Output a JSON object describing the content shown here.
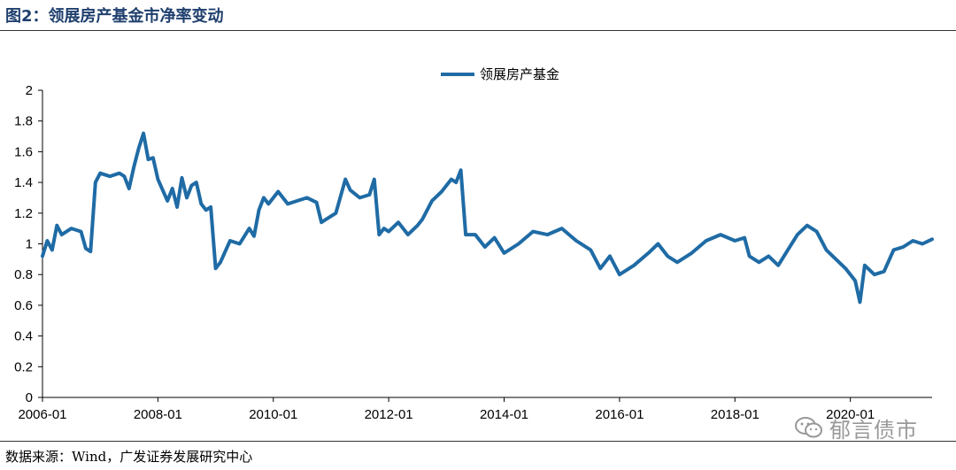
{
  "header": {
    "title": "图2：领展房产基金市净率变动"
  },
  "footer": {
    "source": "数据来源：Wind，广发证券发展研究中心"
  },
  "watermark": {
    "text": "郁言债市",
    "icon": "wechat-icon"
  },
  "colors": {
    "series": "#1f6ba5",
    "title": "#1f3f6e",
    "axis": "#000000"
  },
  "chart_data": {
    "type": "line",
    "title": "",
    "xlabel": "",
    "ylabel": "",
    "ylim": [
      0,
      2
    ],
    "yticks": [
      0,
      0.2,
      0.4,
      0.6,
      0.8,
      1,
      1.2,
      1.4,
      1.6,
      1.8,
      2
    ],
    "ytick_labels": [
      "0",
      "0.2",
      "0.4",
      "0.6",
      "0.8",
      "1",
      "1.2",
      "1.4",
      "1.6",
      "1.8",
      "2"
    ],
    "xlim": [
      "2006-01",
      "2021-06"
    ],
    "xticks": [
      "2006-01",
      "2008-01",
      "2010-01",
      "2012-01",
      "2014-01",
      "2016-01",
      "2018-01",
      "2020-01"
    ],
    "grid": false,
    "legend": "top-center",
    "series": [
      {
        "name": "领展房产基金",
        "color": "#1f6ba5",
        "points": [
          [
            "2006-01",
            0.92
          ],
          [
            "2006-02",
            1.02
          ],
          [
            "2006-03",
            0.96
          ],
          [
            "2006-04",
            1.12
          ],
          [
            "2006-05",
            1.06
          ],
          [
            "2006-07",
            1.1
          ],
          [
            "2006-09",
            1.08
          ],
          [
            "2006-10",
            0.97
          ],
          [
            "2006-11",
            0.95
          ],
          [
            "2006-12",
            1.4
          ],
          [
            "2007-01",
            1.46
          ],
          [
            "2007-03",
            1.44
          ],
          [
            "2007-05",
            1.46
          ],
          [
            "2007-06",
            1.44
          ],
          [
            "2007-07",
            1.36
          ],
          [
            "2007-08",
            1.5
          ],
          [
            "2007-09",
            1.62
          ],
          [
            "2007-10",
            1.72
          ],
          [
            "2007-11",
            1.55
          ],
          [
            "2007-12",
            1.56
          ],
          [
            "2008-01",
            1.42
          ],
          [
            "2008-02",
            1.35
          ],
          [
            "2008-03",
            1.28
          ],
          [
            "2008-04",
            1.36
          ],
          [
            "2008-05",
            1.24
          ],
          [
            "2008-06",
            1.43
          ],
          [
            "2008-07",
            1.3
          ],
          [
            "2008-08",
            1.38
          ],
          [
            "2008-09",
            1.4
          ],
          [
            "2008-10",
            1.26
          ],
          [
            "2008-11",
            1.22
          ],
          [
            "2008-12",
            1.24
          ],
          [
            "2009-01",
            0.84
          ],
          [
            "2009-02",
            0.88
          ],
          [
            "2009-03",
            0.95
          ],
          [
            "2009-04",
            1.02
          ],
          [
            "2009-06",
            1.0
          ],
          [
            "2009-08",
            1.1
          ],
          [
            "2009-09",
            1.05
          ],
          [
            "2009-10",
            1.22
          ],
          [
            "2009-11",
            1.3
          ],
          [
            "2009-12",
            1.26
          ],
          [
            "2010-01",
            1.3
          ],
          [
            "2010-02",
            1.34
          ],
          [
            "2010-04",
            1.26
          ],
          [
            "2010-06",
            1.28
          ],
          [
            "2010-08",
            1.3
          ],
          [
            "2010-10",
            1.27
          ],
          [
            "2010-11",
            1.14
          ],
          [
            "2010-12",
            1.16
          ],
          [
            "2011-02",
            1.2
          ],
          [
            "2011-04",
            1.42
          ],
          [
            "2011-05",
            1.35
          ],
          [
            "2011-07",
            1.3
          ],
          [
            "2011-09",
            1.32
          ],
          [
            "2011-10",
            1.42
          ],
          [
            "2011-11",
            1.06
          ],
          [
            "2011-12",
            1.1
          ],
          [
            "2012-01",
            1.08
          ],
          [
            "2012-03",
            1.14
          ],
          [
            "2012-05",
            1.06
          ],
          [
            "2012-07",
            1.12
          ],
          [
            "2012-08",
            1.16
          ],
          [
            "2012-10",
            1.28
          ],
          [
            "2012-12",
            1.34
          ],
          [
            "2013-02",
            1.42
          ],
          [
            "2013-03",
            1.4
          ],
          [
            "2013-04",
            1.48
          ],
          [
            "2013-05",
            1.06
          ],
          [
            "2013-07",
            1.06
          ],
          [
            "2013-09",
            0.98
          ],
          [
            "2013-11",
            1.04
          ],
          [
            "2014-01",
            0.94
          ],
          [
            "2014-04",
            1.0
          ],
          [
            "2014-07",
            1.08
          ],
          [
            "2014-10",
            1.06
          ],
          [
            "2015-01",
            1.1
          ],
          [
            "2015-04",
            1.02
          ],
          [
            "2015-07",
            0.96
          ],
          [
            "2015-09",
            0.84
          ],
          [
            "2015-11",
            0.92
          ],
          [
            "2016-01",
            0.8
          ],
          [
            "2016-04",
            0.86
          ],
          [
            "2016-07",
            0.94
          ],
          [
            "2016-09",
            1.0
          ],
          [
            "2016-11",
            0.92
          ],
          [
            "2017-01",
            0.88
          ],
          [
            "2017-04",
            0.94
          ],
          [
            "2017-07",
            1.02
          ],
          [
            "2017-10",
            1.06
          ],
          [
            "2018-01",
            1.02
          ],
          [
            "2018-03",
            1.04
          ],
          [
            "2018-04",
            0.92
          ],
          [
            "2018-06",
            0.88
          ],
          [
            "2018-08",
            0.92
          ],
          [
            "2018-10",
            0.86
          ],
          [
            "2018-12",
            0.96
          ],
          [
            "2019-02",
            1.06
          ],
          [
            "2019-04",
            1.12
          ],
          [
            "2019-06",
            1.08
          ],
          [
            "2019-08",
            0.96
          ],
          [
            "2019-10",
            0.9
          ],
          [
            "2019-12",
            0.84
          ],
          [
            "2020-02",
            0.76
          ],
          [
            "2020-03",
            0.62
          ],
          [
            "2020-04",
            0.86
          ],
          [
            "2020-06",
            0.8
          ],
          [
            "2020-08",
            0.82
          ],
          [
            "2020-10",
            0.96
          ],
          [
            "2020-12",
            0.98
          ],
          [
            "2021-02",
            1.02
          ],
          [
            "2021-04",
            1.0
          ],
          [
            "2021-06",
            1.03
          ]
        ]
      }
    ]
  }
}
